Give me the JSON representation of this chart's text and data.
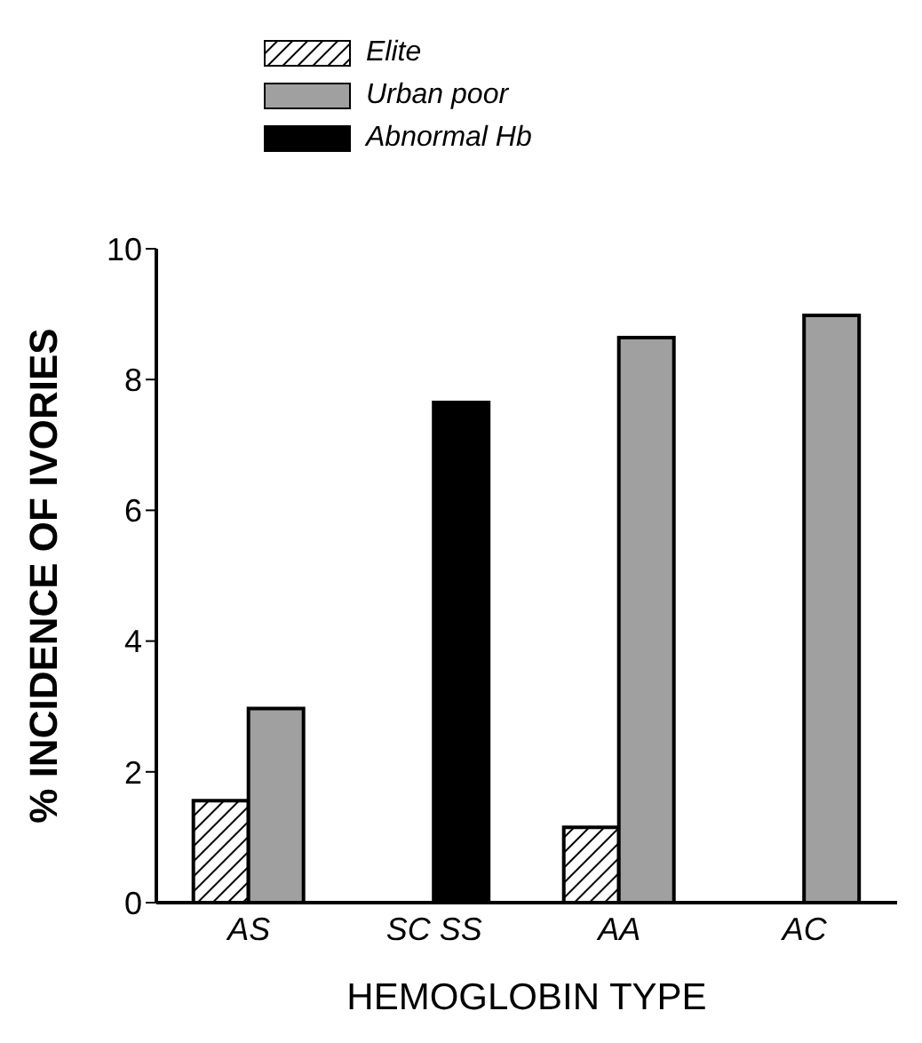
{
  "chart_data": {
    "type": "bar",
    "xlabel": "HEMOGLOBIN TYPE",
    "ylabel": "% INCIDENCE OF IVORIES",
    "categories": [
      "AS",
      "SC  SS",
      "AA",
      "AC"
    ],
    "series": [
      {
        "name": "Elite",
        "color": "#000000",
        "values": [
          1.56,
          0,
          1.15,
          0
        ]
      },
      {
        "name": "Urban poor",
        "color": "#a0a0a0",
        "values": [
          2.97,
          null,
          8.64,
          8.98
        ]
      },
      {
        "name": "Abnormal Hb",
        "color": "#000000",
        "values": [
          null,
          7.65,
          null,
          null
        ]
      }
    ],
    "ylim": [
      0,
      10
    ],
    "yticks": [
      0,
      2,
      4,
      6,
      8,
      10
    ],
    "grid": false,
    "legend": "top left"
  }
}
